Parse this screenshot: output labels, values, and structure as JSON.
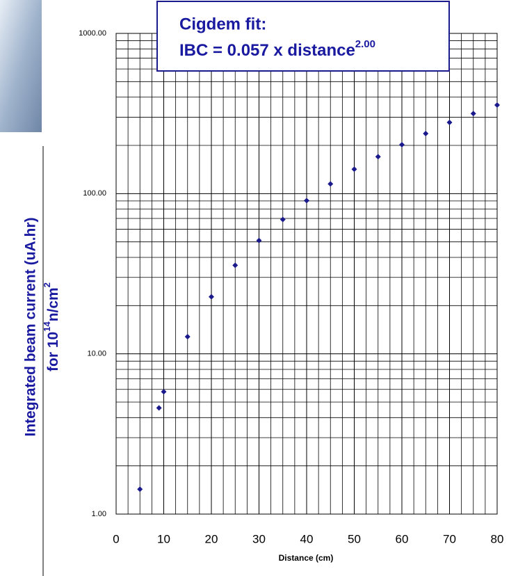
{
  "chart_data": {
    "type": "scatter",
    "annotation": {
      "line1": "Cigdem fit:",
      "line2": "IBC = 0.057 x distance",
      "exponent": "2.00"
    },
    "xlabel": "Distance (cm)",
    "ylabel": {
      "line1": "Integrated beam current (uA.hr)",
      "line2": "for 10",
      "sup1": "14",
      "line2b": "n/cm",
      "sup2": "2"
    },
    "x": [
      5,
      9,
      10,
      15,
      20,
      25,
      30,
      35,
      40,
      45,
      50,
      55,
      60,
      65,
      70,
      75,
      80
    ],
    "values": [
      1.43,
      4.6,
      5.8,
      12.8,
      22.7,
      35.7,
      51,
      69,
      90.5,
      115,
      142,
      170,
      202,
      237,
      278,
      316,
      357
    ],
    "color": "#1a1a8c",
    "xlim": [
      0,
      80
    ],
    "xticks": [
      0,
      10,
      20,
      30,
      40,
      50,
      60,
      70,
      80
    ],
    "ylim": [
      1,
      1000
    ],
    "log_y": true,
    "grid": true,
    "yticks": [
      {
        "value": 1,
        "label": "1.00"
      },
      {
        "value": 10,
        "label": "10.00"
      },
      {
        "value": 100,
        "label": "100.00"
      },
      {
        "value": 1000,
        "label": "1000.00"
      }
    ]
  }
}
